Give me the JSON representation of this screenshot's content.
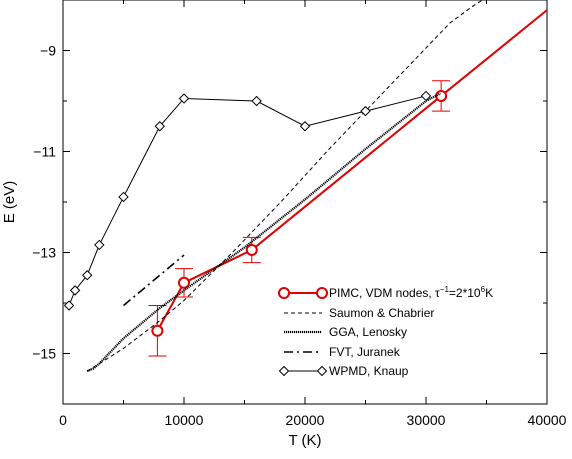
{
  "chart_data": {
    "type": "line",
    "xlabel": "T (K)",
    "ylabel": "E (eV)",
    "xlim": [
      0,
      40000
    ],
    "ylim": [
      -16,
      -8
    ],
    "x_ticks": [
      0,
      10000,
      20000,
      30000,
      40000
    ],
    "x_tick_labels": [
      "0",
      "10000",
      "20000",
      "30000",
      "40000"
    ],
    "y_ticks": [
      -15,
      -13,
      -11,
      -9
    ],
    "y_tick_labels": [
      "−15",
      "−13",
      "−11",
      "−9"
    ],
    "legend_position": "bottom-right",
    "series": [
      {
        "name_parts": {
          "pre": "PIMC, VDM nodes, τ",
          "sup1": "−1",
          "mid": "=2*10",
          "sup2": "6",
          "post": "K"
        },
        "style": "solid-red-circles",
        "color": "#e00000",
        "x": [
          7800,
          10000,
          15600,
          31250
        ],
        "y": [
          -14.55,
          -13.6,
          -12.95,
          -9.9
        ],
        "err": [
          0.5,
          0.28,
          0.25,
          0.3
        ],
        "extension": {
          "x": [
            31250,
            40000
          ],
          "y": [
            -9.9,
            -8.2
          ]
        }
      },
      {
        "name": "Saumon  & Chabrier",
        "style": "dashed",
        "color": "#000000",
        "x": [
          2000,
          5000,
          8000,
          10000,
          14000,
          18000,
          22000,
          26000,
          30000,
          32000,
          34000,
          35000
        ],
        "y": [
          -15.35,
          -14.9,
          -14.35,
          -13.95,
          -13.0,
          -12.0,
          -10.95,
          -9.95,
          -8.95,
          -8.45,
          -8.1,
          -7.95
        ]
      },
      {
        "name": "GGA, Lenosky",
        "style": "dotted-thick",
        "color": "#000000",
        "x": [
          2000,
          2500,
          3000,
          4000,
          5000,
          6000,
          8000,
          10000,
          15000,
          20000,
          25000,
          30000,
          31200
        ],
        "y": [
          -15.35,
          -15.3,
          -15.2,
          -14.95,
          -14.7,
          -14.5,
          -14.1,
          -13.75,
          -12.9,
          -11.95,
          -10.95,
          -10.0,
          -9.85
        ]
      },
      {
        "name": "FVT, Juranek",
        "style": "dash-dot",
        "color": "#000000",
        "x": [
          5000,
          10000
        ],
        "y": [
          -14.05,
          -13.05
        ]
      },
      {
        "name": "WPMD, Knaup",
        "style": "solid-diamonds",
        "color": "#000000",
        "x": [
          500,
          1000,
          2000,
          3000,
          5000,
          8000,
          10000,
          16000,
          20000,
          25000,
          30000
        ],
        "y": [
          -14.05,
          -13.75,
          -13.45,
          -12.85,
          -11.9,
          -10.5,
          -9.95,
          -10.0,
          -10.5,
          -10.2,
          -9.9
        ]
      }
    ]
  }
}
